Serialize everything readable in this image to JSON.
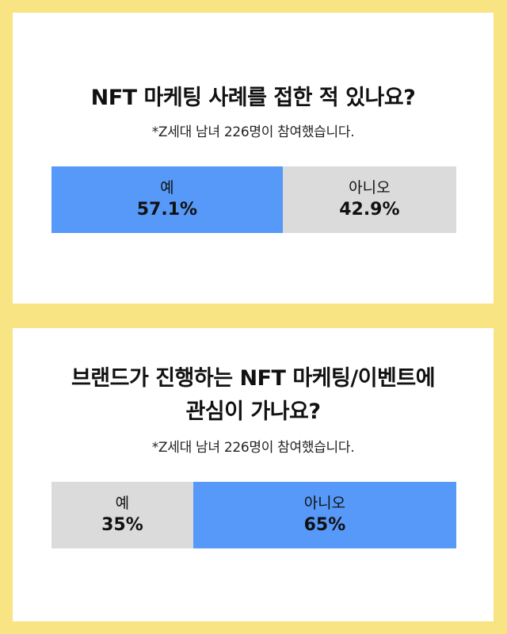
{
  "colors": {
    "background": "#f8e483",
    "highlight": "#5799f8",
    "neutral": "#dcdbdc"
  },
  "chart_data": [
    {
      "type": "bar",
      "title": "NFT 마케팅 사례를 접한 적 있나요?",
      "subtitle": "*Z세대 남녀 226명이 참여했습니다.",
      "categories": [
        "예",
        "아니오"
      ],
      "values": [
        57.1,
        42.9
      ],
      "value_labels": [
        "57.1%",
        "42.9%"
      ],
      "highlight": "예"
    },
    {
      "type": "bar",
      "title_lines": [
        "브랜드가 진행하는 NFT 마케팅/이벤트에",
        "관심이 가나요?"
      ],
      "subtitle": "*Z세대 남녀 226명이 참여했습니다.",
      "categories": [
        "예",
        "아니오"
      ],
      "values": [
        35,
        65
      ],
      "value_labels": [
        "35%",
        "65%"
      ],
      "highlight": "아니오"
    }
  ]
}
